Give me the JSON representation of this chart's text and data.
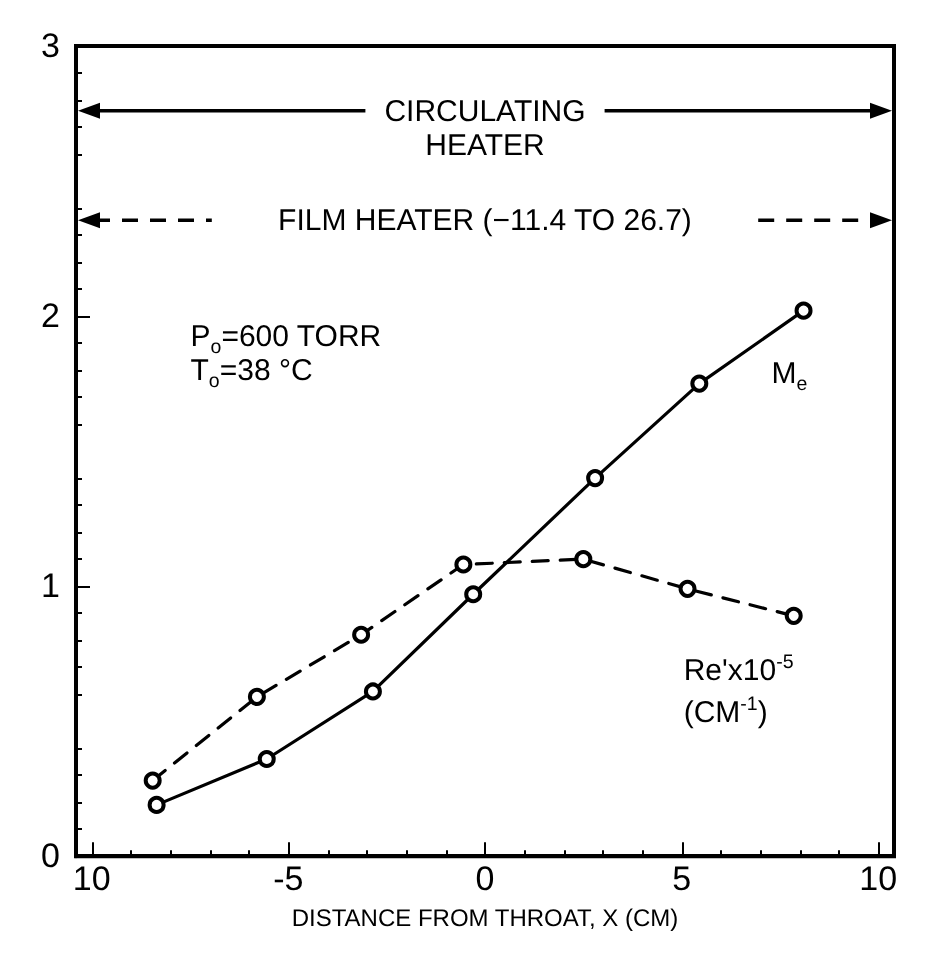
{
  "chart_data": {
    "type": "line",
    "xlabel": "DISTANCE FROM THROAT, X (CM)",
    "xlim": [
      -10.4,
      10.4
    ],
    "xticks": [
      {
        "value": -10,
        "label": "10"
      },
      -5,
      0,
      5,
      10
    ],
    "ylim": [
      0,
      3
    ],
    "yticks": [
      0,
      1,
      2,
      3
    ],
    "marker": "circle",
    "series": [
      {
        "name": "M$_{e}$",
        "color": "#000000",
        "line_style": "solid",
        "x": [
          -8.35,
          -5.55,
          -2.85,
          -0.3,
          2.8,
          5.45,
          8.1
        ],
        "values": [
          0.19,
          0.36,
          0.61,
          0.97,
          1.4,
          1.75,
          2.02
        ]
      },
      {
        "name": "Re'x10$^{-5}$\n(CM$^{-1}$)",
        "color": "#000000",
        "line_style": "dashed",
        "x": [
          -8.45,
          -5.8,
          -3.15,
          -0.55,
          2.5,
          5.15,
          7.85
        ],
        "values": [
          0.28,
          0.59,
          0.82,
          1.08,
          1.1,
          0.99,
          0.89
        ]
      }
    ],
    "annotations": [
      "CIRCULATING\nHEATER",
      "FILM HEATER (−11.4 TO 26.7)",
      "P$_{o}$=600 TORR\nT$_{o}$=38 °C"
    ]
  }
}
